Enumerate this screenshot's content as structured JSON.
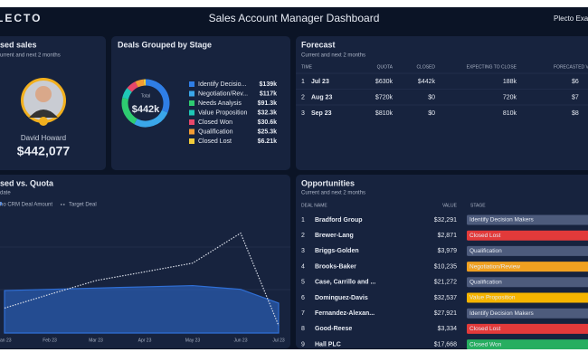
{
  "header": {
    "logo": "PLECTO",
    "title": "Sales Account Manager Dashboard",
    "account": "Plecto Exa"
  },
  "closed_sales": {
    "title": "sed sales",
    "subtitle": "urrent and next 2 months",
    "person": "David Howard",
    "amount": "$442,077"
  },
  "deals": {
    "type": "pie",
    "title": "Deals Grouped by Stage",
    "total_label": "Total",
    "total": "$442k",
    "names": [
      "Identify Decisio...",
      "Negotiation/Rev...",
      "Needs Analysis",
      "Value Proposition",
      "Closed Won",
      "Qualification",
      "Closed Lost"
    ],
    "values": [
      139,
      117,
      91.3,
      32.3,
      30.6,
      25.3,
      6.21
    ],
    "value_labels": [
      "$139k",
      "$117k",
      "$91.3k",
      "$32.3k",
      "$30.6k",
      "$25.3k",
      "$6.21k"
    ],
    "colors": [
      "#2f7ee6",
      "#3aa7ea",
      "#2ecc71",
      "#1fc7b6",
      "#e8476a",
      "#f39c33",
      "#f2cc3a"
    ]
  },
  "forecast": {
    "title": "Forecast",
    "subtitle": "Current and next 2 months",
    "headers": [
      "TIME",
      "QUOTA",
      "CLOSED",
      "EXPECTING TO CLOSE",
      "FORECASTED VAL"
    ],
    "rows": [
      [
        "1",
        "Jul 23",
        "$630k",
        "$442k",
        "188k",
        "$6"
      ],
      [
        "2",
        "Aug 23",
        "$720k",
        "$0",
        "720k",
        "$7"
      ],
      [
        "3",
        "Sep 23",
        "$810k",
        "$0",
        "810k",
        "$8"
      ]
    ]
  },
  "closed_vs_quota": {
    "type": "line",
    "title": "sed vs. Quota",
    "subtitle": "date",
    "categories": [
      "Jan 23",
      "Feb 23",
      "Mar 23",
      "Apr 23",
      "May 23",
      "Jun 23",
      "Jul 23"
    ],
    "series": [
      {
        "name": "ho CRM Deal Amount",
        "color": "#2f6fd6",
        "values": [
          34,
          35,
          36,
          37,
          38,
          35,
          24
        ]
      },
      {
        "name": "Target Deal",
        "color": "#d8dde8",
        "values": [
          20,
          31,
          42,
          49,
          56,
          80,
          6
        ]
      }
    ],
    "ylim": [
      0,
      100
    ]
  },
  "opportunities": {
    "title": "Opportunities",
    "subtitle": "Current and next 2 months",
    "headers": [
      "DEAL NAME",
      "VALUE",
      "STAGE"
    ],
    "rows": [
      [
        "1",
        "Bradford Group",
        "$32,291",
        "Identify Decision Makers",
        "#4d5b7c"
      ],
      [
        "2",
        "Brewer-Lang",
        "$2,871",
        "Closed Lost",
        "#e23a3a"
      ],
      [
        "3",
        "Briggs-Golden",
        "$3,979",
        "Qualification",
        "#4d5b7c"
      ],
      [
        "4",
        "Brooks-Baker",
        "$10,235",
        "Negotiation/Review",
        "#f0a020"
      ],
      [
        "5",
        "Case, Carrillo and ...",
        "$21,272",
        "Qualification",
        "#4d5b7c"
      ],
      [
        "6",
        "Dominguez-Davis",
        "$32,537",
        "Value Proposition",
        "#f5b400"
      ],
      [
        "7",
        "Fernandez-Alexan...",
        "$27,921",
        "Identify Decision Makers",
        "#4d5b7c"
      ],
      [
        "8",
        "Good-Reese",
        "$3,334",
        "Closed Lost",
        "#e23a3a"
      ],
      [
        "9",
        "Hall PLC",
        "$17,668",
        "Closed Won",
        "#27ae60"
      ]
    ]
  }
}
